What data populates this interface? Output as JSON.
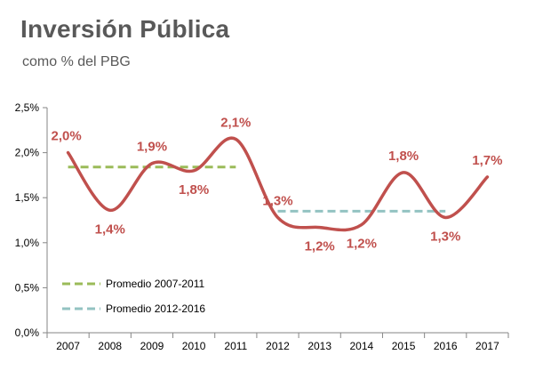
{
  "chart_data": {
    "type": "line",
    "title": "Inversión Pública",
    "subtitle": "como % del PBG",
    "xlabel": "",
    "ylabel": "",
    "categories": [
      "2007",
      "2008",
      "2009",
      "2010",
      "2011",
      "2012",
      "2013",
      "2014",
      "2015",
      "2016",
      "2017"
    ],
    "ylim": [
      0,
      2.5
    ],
    "yticks": [
      0,
      0.5,
      1.0,
      1.5,
      2.0,
      2.5
    ],
    "ytick_labels": [
      "0,0%",
      "0,5%",
      "1,0%",
      "1,5%",
      "2,0%",
      "2,5%"
    ],
    "grid": false,
    "legend_position": "bottom-left",
    "series": [
      {
        "values": [
          2.0,
          1.36,
          1.88,
          1.8,
          2.15,
          1.28,
          1.17,
          1.2,
          1.78,
          1.28,
          1.73
        ],
        "labels": [
          "2,0%",
          "1,4%",
          "1,9%",
          "1,8%",
          "2,1%",
          "1,3%",
          "1,2%",
          "1,2%",
          "1,8%",
          "1,3%",
          "1,7%"
        ],
        "color": "#c0504d",
        "style": "smooth"
      },
      {
        "name": "Promedio 2007-2011",
        "x_range": [
          "2007",
          "2011"
        ],
        "value": 1.84,
        "color": "#9bbb59",
        "style": "dashed"
      },
      {
        "name": "Promedio 2012-2016",
        "x_range": [
          "2012",
          "2016"
        ],
        "value": 1.35,
        "color": "#93c3c2",
        "style": "dashed"
      }
    ]
  }
}
